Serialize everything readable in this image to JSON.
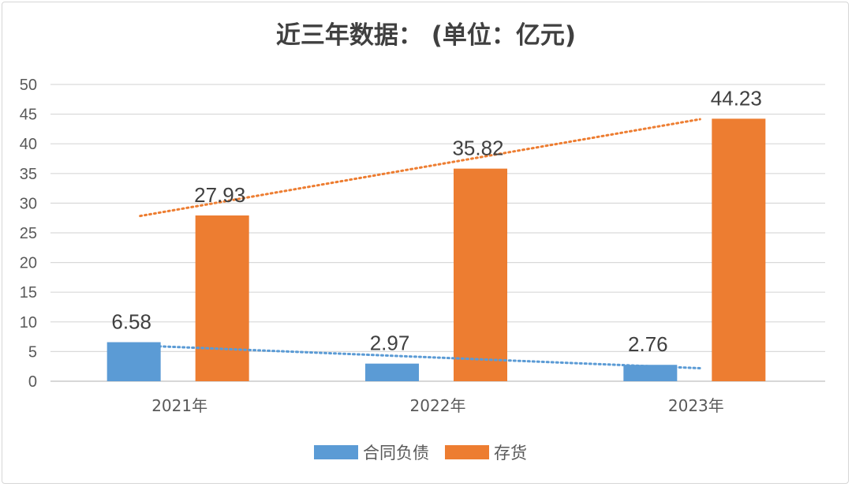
{
  "chart_data": {
    "type": "bar",
    "title": "近三年数据：  (单位：亿元)",
    "categories": [
      "2021年",
      "2022年",
      "2023年"
    ],
    "series": [
      {
        "name": "合同负债",
        "values": [
          6.58,
          2.97,
          2.76
        ],
        "color": "#5B9BD5",
        "trendline": "linear"
      },
      {
        "name": "存货",
        "values": [
          27.93,
          35.82,
          44.23
        ],
        "color": "#ED7D31",
        "trendline": "linear"
      }
    ],
    "ylim": [
      0,
      50
    ],
    "yticks": [
      0,
      5,
      10,
      15,
      20,
      25,
      30,
      35,
      40,
      45,
      50
    ],
    "grid": true,
    "legend": "bottom",
    "data_labels": true
  }
}
